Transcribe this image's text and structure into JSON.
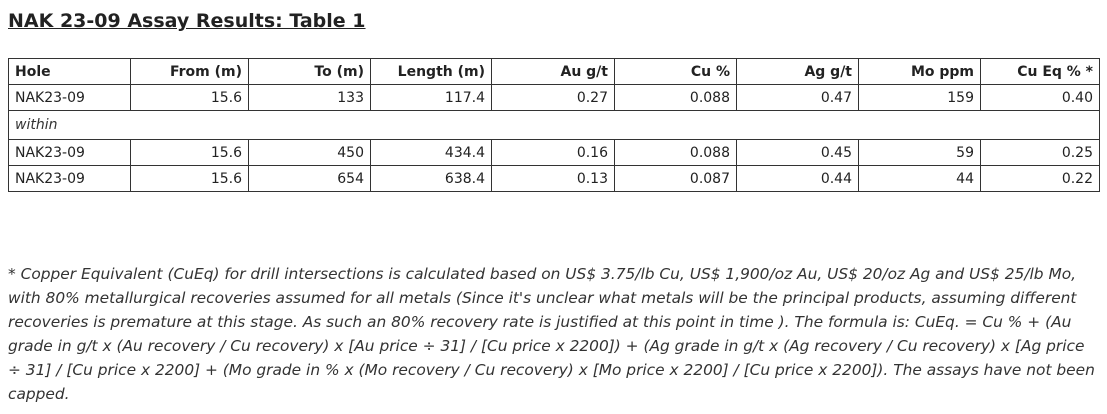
{
  "header": {
    "title": "NAK 23-09 Assay Results: Table 1"
  },
  "table": {
    "columns": [
      "Hole",
      "From (m)",
      "To (m)",
      "Length (m)",
      "Au g/t",
      "Cu %",
      "Ag g/t",
      "Mo ppm",
      "Cu Eq % *"
    ],
    "rows": [
      [
        "NAK23-09",
        "15.6",
        "133",
        "117.4",
        "0.27",
        "0.088",
        "0.47",
        "159",
        "0.40"
      ],
      [
        "within"
      ],
      [
        "NAK23-09",
        "15.6",
        "450",
        "434.4",
        "0.16",
        "0.088",
        "0.45",
        "59",
        "0.25"
      ],
      [
        "NAK23-09",
        "15.6",
        "654",
        "638.4",
        "0.13",
        "0.087",
        "0.44",
        "44",
        "0.22"
      ]
    ]
  },
  "footnote": "* Copper Equivalent (CuEq) for drill intersections is calculated based on US$ 3.75/lb Cu, US$ 1,900/oz Au, US$ 20/oz Ag and US$ 25/lb Mo, with 80% metallurgical recoveries assumed for all metals (Since it's unclear what metals will be the principal products, assuming different recoveries is premature at this stage. As such an 80% recovery rate is justified at this point in time ). The formula is: CuEq. = Cu % + (Au grade in g/t x (Au recovery / Cu recovery) x [Au price ÷ 31] / [Cu price x 2200]) + (Ag grade in g/t x (Ag recovery / Cu recovery) x [Ag price ÷ 31] / [Cu price x 2200] + (Mo grade in % x (Mo recovery / Cu recovery) x [Mo price x 2200] / [Cu price x 2200]). The assays have not been capped."
}
